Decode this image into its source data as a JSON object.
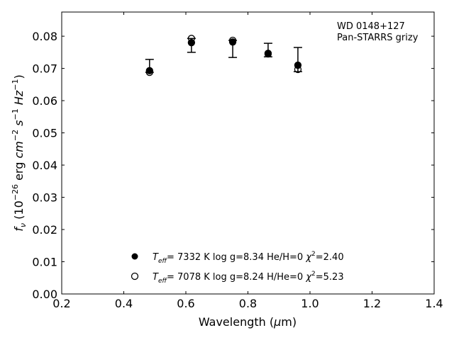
{
  "chart_data": {
    "type": "scatter",
    "xlabel": "Wavelength (μm)",
    "ylabel": "f_ν (10^-26 erg cm^-2 s^-1 Hz^-1)",
    "xlim": [
      0.2,
      1.4
    ],
    "ylim": [
      0,
      0.0875
    ],
    "xticks": [
      "0.2",
      "0.4",
      "0.6",
      "0.8",
      "1.0",
      "1.2",
      "1.4"
    ],
    "yticks": [
      "0.00",
      "0.01",
      "0.02",
      "0.03",
      "0.04",
      "0.05",
      "0.06",
      "0.07",
      "0.08"
    ],
    "annotation": [
      "WD 0148+127",
      "Pan-STARRS grizy"
    ],
    "x": [
      0.483,
      0.618,
      0.751,
      0.865,
      0.961
    ],
    "errorbars": {
      "lo": [
        0.0688,
        0.075,
        0.0734,
        0.0736,
        0.069
      ],
      "hi": [
        0.0728,
        0.0793,
        0.0787,
        0.0778,
        0.0765
      ]
    },
    "series": [
      {
        "name": "Teff= 7332 K  log g=8.34  He/H=0  χ²=2.40",
        "marker": "filled",
        "values": [
          0.0693,
          0.078,
          0.0782,
          0.0747,
          0.071
        ]
      },
      {
        "name": "Teff= 7078 K  log g=8.24  H/He=0  χ²=5.23",
        "marker": "open",
        "values": [
          0.0688,
          0.0793,
          0.0787,
          0.0745,
          0.0697
        ]
      }
    ],
    "legend_placement": "bottom-center",
    "legend": [
      {
        "teff": "7332 K",
        "rest": "log g=8.34  He/H=0",
        "chi": "=2.40"
      },
      {
        "teff": "7078 K",
        "rest": "log g=8.24  H/He=0",
        "chi": "=5.23"
      }
    ]
  }
}
